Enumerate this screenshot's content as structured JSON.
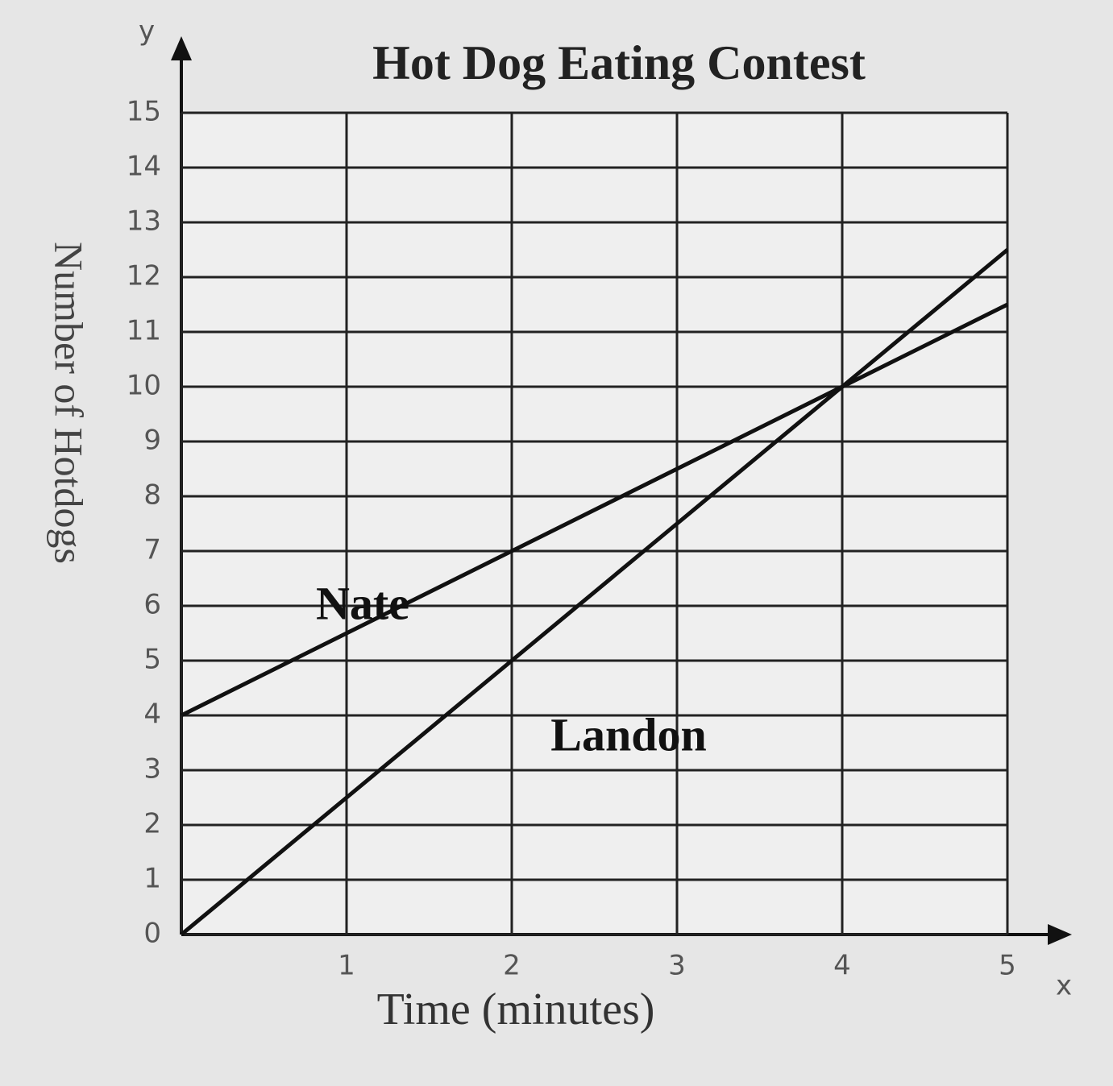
{
  "chart_data": {
    "type": "line",
    "title": "Hot Dog Eating Contest",
    "xlabel": "Time (minutes)",
    "ylabel": "Number of Hotdogs",
    "x_axis_symbol": "x",
    "y_axis_symbol": "y",
    "x": [
      0,
      1,
      2,
      3,
      4,
      5
    ],
    "series": [
      {
        "name": "Nate",
        "color": "#111111",
        "values": [
          4,
          5.5,
          7,
          8.5,
          10,
          11.5
        ]
      },
      {
        "name": "Landon",
        "color": "#111111",
        "values": [
          0,
          2.5,
          5,
          7.5,
          10,
          12.5
        ]
      }
    ],
    "xlim": [
      0,
      5
    ],
    "ylim": [
      0,
      15
    ],
    "xticks": [
      0,
      1,
      2,
      3,
      4,
      5
    ],
    "yticks": [
      0,
      1,
      2,
      3,
      4,
      5,
      6,
      7,
      8,
      9,
      10,
      11,
      12,
      13,
      14,
      15
    ],
    "grid": true
  }
}
